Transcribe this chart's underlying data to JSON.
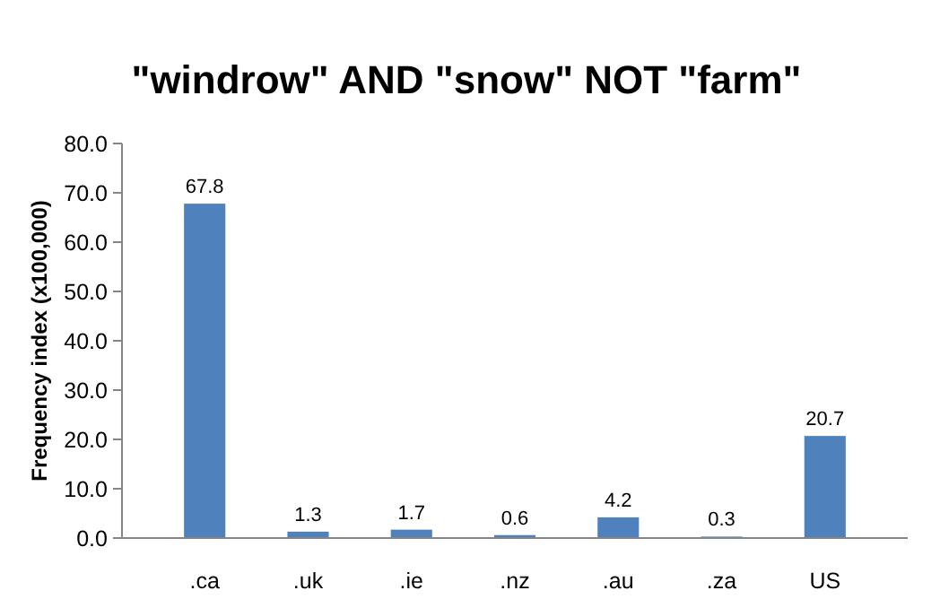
{
  "chart_data": {
    "type": "bar",
    "title": "\"windrow\" AND \"snow\" NOT \"farm\"",
    "ylabel": "Frequency index (x100,000)",
    "categories": [
      ".ca",
      ".uk",
      ".ie",
      ".nz",
      ".au",
      ".za",
      "US"
    ],
    "values": [
      67.8,
      1.3,
      1.7,
      0.6,
      4.2,
      0.3,
      20.7
    ],
    "color": "#4f81bd",
    "ylim": [
      0,
      80
    ],
    "yticks": [
      {
        "value": 0,
        "label": "0.0"
      },
      {
        "value": 10,
        "label": "10.0"
      },
      {
        "value": 20,
        "label": "20.0"
      },
      {
        "value": 30,
        "label": "30.0"
      },
      {
        "value": 40,
        "label": "40.0"
      },
      {
        "value": 50,
        "label": "50.0"
      },
      {
        "value": 60,
        "label": "60.0"
      },
      {
        "value": 70,
        "label": "70.0"
      },
      {
        "value": 80,
        "label": "80.0"
      }
    ],
    "data_labels": true,
    "grid": false
  }
}
